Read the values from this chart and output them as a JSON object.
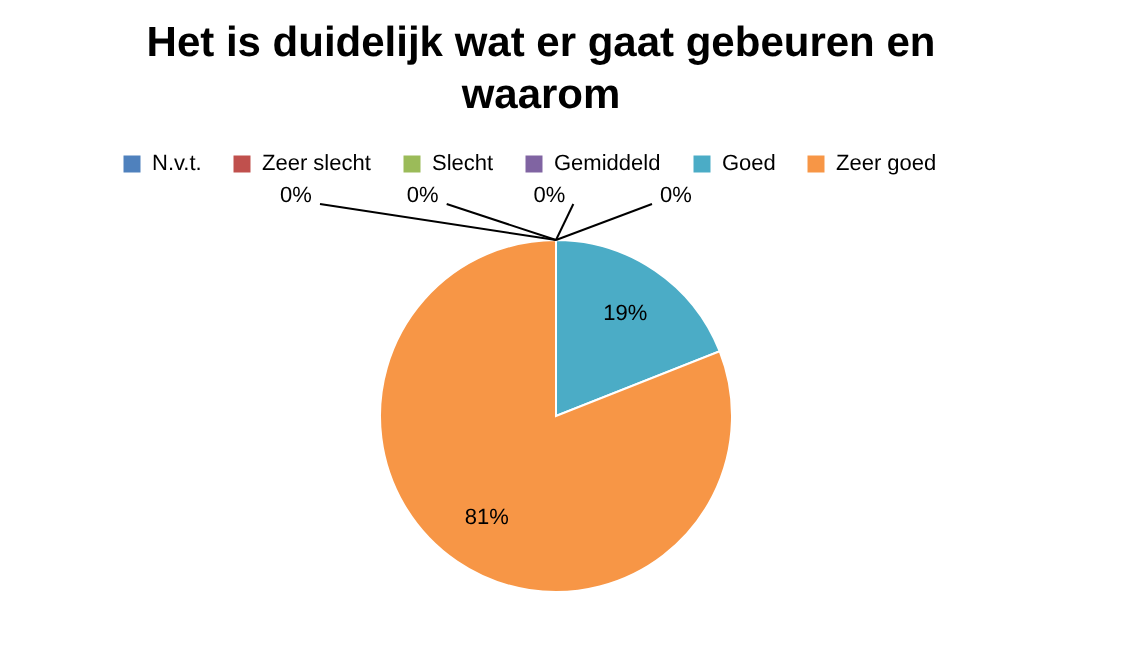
{
  "chart_data": {
    "type": "pie",
    "title": "Het is duidelijk wat er gaat gebeuren en waarom",
    "categories": [
      "N.v.t.",
      "Zeer slecht",
      "Slecht",
      "Gemiddeld",
      "Goed",
      "Zeer goed"
    ],
    "values": [
      0,
      0,
      0,
      0,
      19,
      81
    ],
    "colors": [
      "#4f81bd",
      "#c0504d",
      "#9bbb59",
      "#8064a2",
      "#4bacc6",
      "#f79646"
    ],
    "value_labels": [
      "0%",
      "0%",
      "0%",
      "0%",
      "19%",
      "81%"
    ],
    "legend": "top"
  }
}
